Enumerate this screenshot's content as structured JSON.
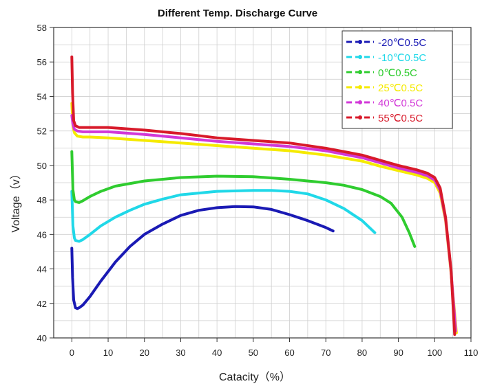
{
  "chart_data": {
    "type": "line",
    "title": "Different Temp. Discharge Curve",
    "xlabel": "Catacity（%）",
    "ylabel": "Voltage（v）",
    "xlim": [
      -5,
      110
    ],
    "ylim": [
      40,
      58
    ],
    "xticks": [
      0,
      10,
      20,
      30,
      40,
      50,
      60,
      70,
      80,
      90,
      100,
      110
    ],
    "yticks": [
      40,
      42,
      44,
      46,
      48,
      50,
      52,
      54,
      56,
      58
    ],
    "grid": true,
    "legend_position": "top-right",
    "series": [
      {
        "name": "-20℃0.5C",
        "color": "#1a1ab4",
        "x": [
          0,
          0.2,
          0.5,
          1,
          1.5,
          2,
          3,
          5,
          8,
          12,
          16,
          20,
          25,
          30,
          35,
          40,
          45,
          50,
          55,
          60,
          65,
          70,
          72
        ],
        "y": [
          45.2,
          43.5,
          42.2,
          41.75,
          41.7,
          41.75,
          41.9,
          42.4,
          43.3,
          44.4,
          45.3,
          46.0,
          46.6,
          47.1,
          47.4,
          47.55,
          47.62,
          47.6,
          47.45,
          47.15,
          46.8,
          46.4,
          46.2
        ]
      },
      {
        "name": "-10℃0.5C",
        "color": "#20d8e8",
        "x": [
          0,
          0.3,
          0.7,
          1,
          2,
          3,
          5,
          8,
          12,
          16,
          20,
          25,
          30,
          40,
          50,
          55,
          60,
          65,
          70,
          75,
          80,
          83.5
        ],
        "y": [
          48.5,
          46.5,
          45.8,
          45.65,
          45.6,
          45.7,
          46.0,
          46.5,
          47.0,
          47.4,
          47.75,
          48.05,
          48.3,
          48.5,
          48.55,
          48.55,
          48.5,
          48.35,
          48.0,
          47.5,
          46.8,
          46.1
        ]
      },
      {
        "name": "0℃0.5C",
        "color": "#2fcc2f",
        "x": [
          0,
          0.3,
          0.7,
          1,
          2,
          3,
          5,
          8,
          12,
          20,
          30,
          40,
          50,
          60,
          70,
          75,
          80,
          85,
          88,
          91,
          93,
          94.5
        ],
        "y": [
          50.8,
          48.6,
          48.0,
          47.9,
          47.85,
          47.95,
          48.2,
          48.5,
          48.8,
          49.1,
          49.3,
          49.38,
          49.35,
          49.2,
          49.0,
          48.85,
          48.6,
          48.2,
          47.8,
          47.0,
          46.1,
          45.3
        ]
      },
      {
        "name": "25℃0.5C",
        "color": "#f5ea00",
        "x": [
          0,
          0.3,
          0.7,
          1.5,
          3,
          5,
          10,
          20,
          30,
          40,
          50,
          60,
          70,
          80,
          85,
          90,
          95,
          98,
          100,
          101.5,
          103,
          104.5,
          106
        ],
        "y": [
          53.6,
          52.3,
          51.9,
          51.7,
          51.65,
          51.65,
          51.6,
          51.45,
          51.3,
          51.15,
          51.0,
          50.85,
          50.6,
          50.25,
          49.95,
          49.7,
          49.45,
          49.25,
          49.0,
          48.4,
          46.8,
          43.8,
          40.3
        ]
      },
      {
        "name": "40℃0.5C",
        "color": "#d238d8",
        "x": [
          0,
          0.3,
          0.7,
          1.5,
          3,
          5,
          10,
          20,
          30,
          40,
          50,
          60,
          70,
          80,
          85,
          90,
          95,
          98,
          100,
          101.5,
          103,
          104.5,
          105.8
        ],
        "y": [
          52.9,
          52.4,
          52.1,
          52.0,
          51.95,
          51.95,
          51.95,
          51.8,
          51.6,
          51.4,
          51.25,
          51.1,
          50.85,
          50.45,
          50.15,
          49.85,
          49.6,
          49.4,
          49.15,
          48.55,
          46.9,
          43.9,
          40.4
        ]
      },
      {
        "name": "55℃0.5C",
        "color": "#d81a2a",
        "x": [
          0,
          0.2,
          0.5,
          1,
          2,
          4,
          10,
          20,
          30,
          40,
          50,
          60,
          70,
          80,
          85,
          90,
          95,
          98,
          100,
          101.5,
          103,
          104.5,
          105.5
        ],
        "y": [
          56.3,
          54.2,
          52.6,
          52.3,
          52.2,
          52.2,
          52.2,
          52.05,
          51.85,
          51.6,
          51.45,
          51.3,
          51.0,
          50.6,
          50.3,
          50.0,
          49.75,
          49.55,
          49.3,
          48.7,
          47.0,
          44.0,
          40.2
        ]
      }
    ]
  }
}
